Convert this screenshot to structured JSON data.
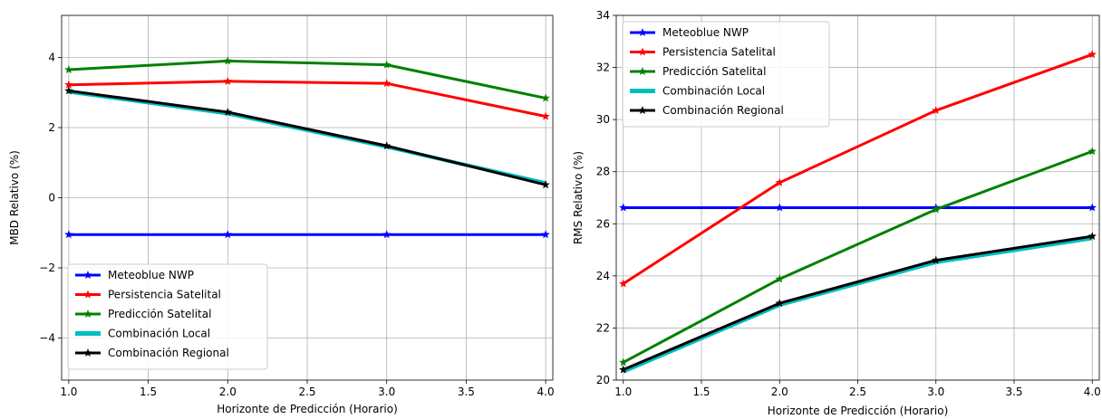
{
  "chart_data": [
    {
      "type": "line",
      "xlabel": "Horizonte de Predicción (Horario)",
      "ylabel": "MBD Relativo (%)",
      "xlim": [
        0.955,
        4.045
      ],
      "ylim": [
        -5.2,
        5.2
      ],
      "xticks": [
        "1.0",
        "1.5",
        "2.0",
        "2.5",
        "3.0",
        "3.5",
        "4.0"
      ],
      "yticks": [
        "−4",
        "−2",
        "0",
        "2",
        "4"
      ],
      "grid": true,
      "legend_position": "lower-left",
      "x": [
        1.0,
        2.0,
        3.0,
        4.0
      ],
      "series": [
        {
          "name": "Meteoblue NWP",
          "color": "#0000ff",
          "values": [
            -1.05,
            -1.05,
            -1.05,
            -1.05
          ],
          "marker": "star"
        },
        {
          "name": "Persistencia Satelital",
          "color": "#ff0000",
          "values": [
            3.22,
            3.32,
            3.26,
            2.32
          ],
          "marker": "star"
        },
        {
          "name": "Predicción Satelital",
          "color": "#008000",
          "values": [
            3.65,
            3.9,
            3.79,
            2.84
          ],
          "marker": "star"
        },
        {
          "name": "Combinación Local",
          "color": "#00bfbf",
          "values": [
            3.02,
            2.4,
            1.45,
            0.42
          ],
          "marker": "none"
        },
        {
          "name": "Combinación Regional",
          "color": "#000000",
          "values": [
            3.05,
            2.44,
            1.48,
            0.37
          ],
          "marker": "star"
        }
      ]
    },
    {
      "type": "line",
      "xlabel": "Horizonte de Predicción (Horario)",
      "ylabel": "RMS Relativo (%)",
      "xlim": [
        0.955,
        4.045
      ],
      "ylim": [
        20,
        34
      ],
      "xticks": [
        "1.0",
        "1.5",
        "2.0",
        "2.5",
        "3.0",
        "3.5",
        "4.0"
      ],
      "yticks": [
        "20",
        "22",
        "24",
        "26",
        "28",
        "30",
        "32",
        "34"
      ],
      "grid": true,
      "legend_position": "upper-left",
      "x": [
        1.0,
        2.0,
        3.0,
        4.0
      ],
      "series": [
        {
          "name": "Meteoblue NWP",
          "color": "#0000ff",
          "values": [
            26.62,
            26.62,
            26.62,
            26.62
          ],
          "marker": "star"
        },
        {
          "name": "Persistencia Satelital",
          "color": "#ff0000",
          "values": [
            23.7,
            27.58,
            30.35,
            32.5
          ],
          "marker": "star"
        },
        {
          "name": "Predicción Satelital",
          "color": "#008000",
          "values": [
            20.68,
            23.88,
            26.55,
            28.78
          ],
          "marker": "star"
        },
        {
          "name": "Combinación Local",
          "color": "#00bfbf",
          "values": [
            20.32,
            22.88,
            24.52,
            25.44
          ],
          "marker": "none"
        },
        {
          "name": "Combinación Regional",
          "color": "#000000",
          "values": [
            20.4,
            22.95,
            24.6,
            25.52
          ],
          "marker": "star"
        }
      ]
    }
  ]
}
